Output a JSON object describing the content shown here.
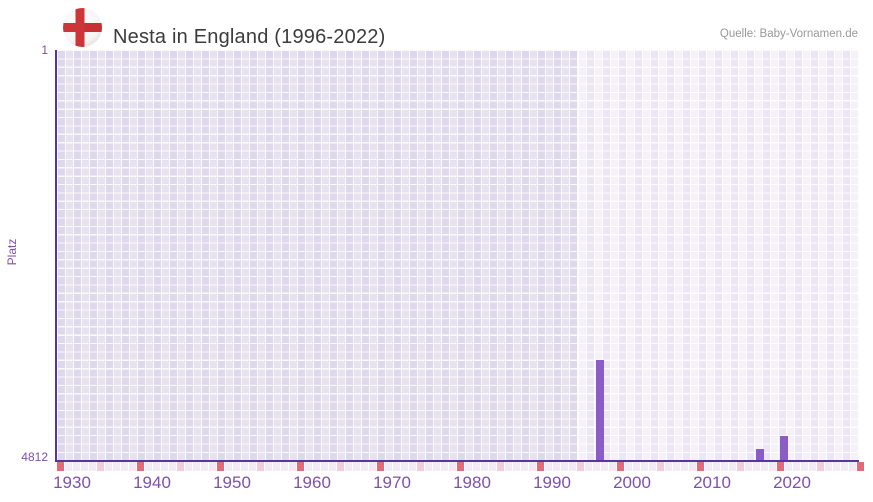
{
  "header": {
    "title": "Nesta in England (1996-2022)",
    "source": "Quelle: Baby-Vornamen.de",
    "flag_icon": "england-flag-icon"
  },
  "chart_data": {
    "type": "bar",
    "title": "Nesta in England (1996-2022)",
    "xlabel": "",
    "ylabel": "Platz",
    "grid": "on",
    "legend": "none",
    "y_axis": {
      "top_tick": "1",
      "bottom_tick": "4812",
      "min": 1,
      "max": 4812,
      "inverted": true
    },
    "x_axis": {
      "tick_labels": [
        "1930",
        "1940",
        "1950",
        "1960",
        "1970",
        "1980",
        "1990",
        "2000",
        "2010",
        "2020"
      ],
      "range_start": 1928,
      "range_end": 2027
    },
    "highlight_region_start_year": 1993,
    "series": [
      {
        "name": "Platz",
        "points": [
          {
            "year": 1996,
            "rank": 3640
          },
          {
            "year": 2016,
            "rank": 4680
          },
          {
            "year": 2019,
            "rank": 4530
          }
        ]
      }
    ],
    "colors": {
      "bar": "#8b5cc8",
      "axis": "#56359f",
      "tick_label": "#8050ae",
      "title_text": "#3c3c3c",
      "source_text": "#999999",
      "grid_early_a": "#e7e2f0",
      "grid_early_b": "#ded8ea",
      "grid_recent_a": "#f5f1fb",
      "grid_recent_b": "#ece6f4",
      "strip_light": "#f2ebf5",
      "strip_mid": "#f3ccd7",
      "strip_decade": "#e26b7a",
      "flag_red": "#ce3539"
    }
  }
}
